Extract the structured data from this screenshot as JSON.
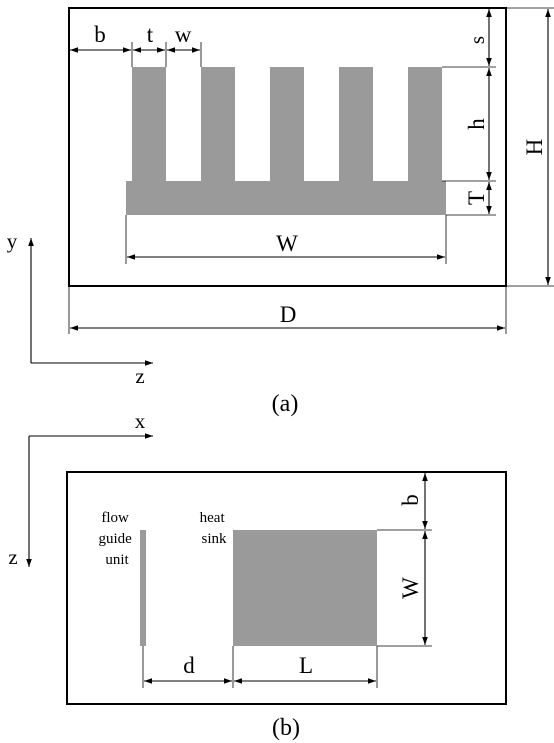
{
  "colors": {
    "solid": "#9a9a9a",
    "line": "#000000",
    "background": "#ffffff"
  },
  "figure_a": {
    "caption": "(a)",
    "fin_count": 5,
    "dimension_labels": {
      "b": "b",
      "t": "t",
      "w": "w",
      "s": "s",
      "h": "h",
      "T": "T",
      "H": "H",
      "W": "W",
      "D": "D"
    },
    "axes": {
      "vertical": "y",
      "horizontal": "z"
    }
  },
  "figure_b": {
    "caption": "(b)",
    "labels": {
      "flow_guide": [
        "flow",
        "guide",
        "unit"
      ],
      "heat_sink": [
        "heat",
        "sink"
      ]
    },
    "dimension_labels": {
      "b": "b",
      "W": "W",
      "d": "d",
      "L": "L"
    },
    "axes": {
      "horizontal": "x",
      "vertical": "z"
    }
  }
}
